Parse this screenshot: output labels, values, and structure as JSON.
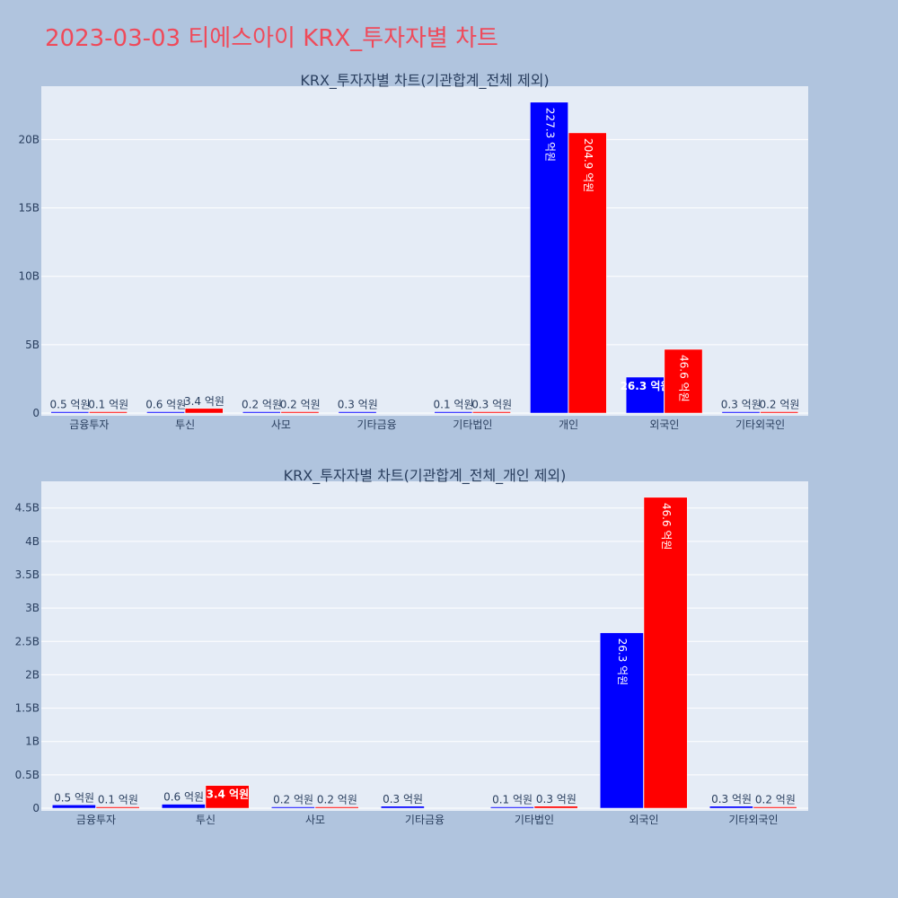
{
  "page": {
    "title": "2023-03-03 티에스아이 KRX_투자자별 차트"
  },
  "colors": {
    "background": "#b0c4de",
    "plot_background": "#e5ecf6",
    "title": "#ef4a5a",
    "buy": "#0000ff",
    "sell": "#ff0000",
    "text": "#2a3f5f"
  },
  "chart_data": [
    {
      "type": "bar",
      "title": "KRX_투자자별 차트(기관합계_전체 제외)",
      "categories": [
        "금융투자",
        "투신",
        "사모",
        "기타금융",
        "기타법인",
        "개인",
        "외국인",
        "기타외국인"
      ],
      "series": [
        {
          "color": "#0000ff",
          "values": [
            50000000,
            60000000,
            20000000,
            30000000,
            10000000,
            22730000000,
            2630000000,
            30000000
          ],
          "labels": [
            "0.5 억원",
            "0.6 억원",
            "0.2 억원",
            "0.3 억원",
            "0.1 억원",
            "227.3 억원",
            "26.3 억원",
            "0.3 억원"
          ]
        },
        {
          "color": "#ff0000",
          "values": [
            10000000,
            340000000,
            20000000,
            null,
            30000000,
            20490000000,
            4660000000,
            20000000
          ],
          "labels": [
            "0.1 억원",
            "3.4 억원",
            "0.2 억원",
            "",
            "0.3 억원",
            "204.9 억원",
            "46.6 억원",
            "0.2 억원"
          ]
        }
      ],
      "yticks": [
        0,
        5000000000,
        10000000000,
        15000000000,
        20000000000
      ],
      "ytick_labels": [
        "0",
        "5B",
        "10B",
        "15B",
        "20B"
      ],
      "ylim": [
        0,
        23900000000
      ],
      "grid": true
    },
    {
      "type": "bar",
      "title": "KRX_투자자별 차트(기관합계_전체_개인 제외)",
      "categories": [
        "금융투자",
        "투신",
        "사모",
        "기타금융",
        "기타법인",
        "외국인",
        "기타외국인"
      ],
      "series": [
        {
          "color": "#0000ff",
          "values": [
            50000000,
            60000000,
            20000000,
            30000000,
            10000000,
            2630000000,
            30000000
          ],
          "labels": [
            "0.5 억원",
            "0.6 억원",
            "0.2 억원",
            "0.3 억원",
            "0.1 억원",
            "26.3 억원",
            "0.3 억원"
          ]
        },
        {
          "color": "#ff0000",
          "values": [
            10000000,
            340000000,
            20000000,
            null,
            30000000,
            4660000000,
            20000000
          ],
          "labels": [
            "0.1 억원",
            "3.4 억원",
            "0.2 억원",
            "",
            "0.3 억원",
            "46.6 억원",
            "0.2 억원"
          ]
        }
      ],
      "yticks": [
        0,
        500000000,
        1000000000,
        1500000000,
        2000000000,
        2500000000,
        3000000000,
        3500000000,
        4000000000,
        4500000000
      ],
      "ytick_labels": [
        "0",
        "0.5B",
        "1B",
        "1.5B",
        "2B",
        "2.5B",
        "3B",
        "3.5B",
        "4B",
        "4.5B"
      ],
      "ylim": [
        0,
        4900000000
      ],
      "grid": true
    }
  ]
}
